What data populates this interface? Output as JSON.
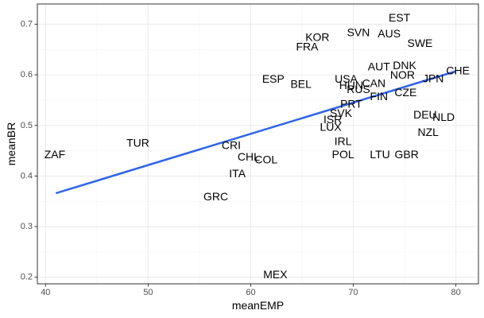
{
  "chart_data": {
    "type": "scatter",
    "title": "",
    "xlabel": "meanEMP",
    "ylabel": "meanBR",
    "xlim": [
      39.2,
      82.2
    ],
    "ylim": [
      0.187,
      0.74
    ],
    "x_ticks": [
      40,
      50,
      60,
      70,
      80
    ],
    "y_ticks": [
      0.2,
      0.3,
      0.4,
      0.5,
      0.6,
      0.7
    ],
    "x_tick_labels": [
      "40",
      "50",
      "60",
      "70",
      "80"
    ],
    "y_tick_labels": [
      "0.2",
      "0.3",
      "0.4",
      "0.5",
      "0.6",
      "0.7"
    ],
    "grid": true,
    "legend": "none",
    "colors": {
      "trend": "#3366e6",
      "panel_border": "#333333",
      "grid_major": "#ebebeb",
      "grid_minor": "#f5f5f5",
      "text": "#000000",
      "tick_text": "#4d4d4d"
    },
    "trend_line": {
      "x": [
        41.0,
        80.0
      ],
      "y": [
        0.366,
        0.607
      ]
    },
    "points": [
      {
        "label": "EST",
        "x": 74.5,
        "y": 0.713
      },
      {
        "label": "SVN",
        "x": 70.5,
        "y": 0.684
      },
      {
        "label": "AUS",
        "x": 73.5,
        "y": 0.682
      },
      {
        "label": "KOR",
        "x": 66.5,
        "y": 0.675
      },
      {
        "label": "SWE",
        "x": 76.5,
        "y": 0.663
      },
      {
        "label": "FRA",
        "x": 65.5,
        "y": 0.656
      },
      {
        "label": "AUT",
        "x": 72.5,
        "y": 0.617
      },
      {
        "label": "DNK",
        "x": 75.0,
        "y": 0.619
      },
      {
        "label": "CHE",
        "x": 80.2,
        "y": 0.609
      },
      {
        "label": "NOR",
        "x": 74.8,
        "y": 0.6
      },
      {
        "label": "JPN",
        "x": 77.8,
        "y": 0.593
      },
      {
        "label": "ESP",
        "x": 62.2,
        "y": 0.592
      },
      {
        "label": "USA",
        "x": 69.3,
        "y": 0.592
      },
      {
        "label": "BEL",
        "x": 64.9,
        "y": 0.582
      },
      {
        "label": "HUN",
        "x": 69.8,
        "y": 0.58
      },
      {
        "label": "CAN",
        "x": 72.0,
        "y": 0.584
      },
      {
        "label": "RUS",
        "x": 70.5,
        "y": 0.572
      },
      {
        "label": "CZE",
        "x": 75.1,
        "y": 0.566
      },
      {
        "label": "FIN",
        "x": 72.5,
        "y": 0.558
      },
      {
        "label": "PRT",
        "x": 69.8,
        "y": 0.543
      },
      {
        "label": "SVK",
        "x": 68.8,
        "y": 0.525
      },
      {
        "label": "DEU",
        "x": 77.0,
        "y": 0.522
      },
      {
        "label": "NLD",
        "x": 78.8,
        "y": 0.517
      },
      {
        "label": "ISR",
        "x": 68.0,
        "y": 0.512
      },
      {
        "label": "LUX",
        "x": 67.8,
        "y": 0.497
      },
      {
        "label": "NZL",
        "x": 77.3,
        "y": 0.487
      },
      {
        "label": "TUR",
        "x": 49.0,
        "y": 0.466
      },
      {
        "label": "IRL",
        "x": 69.0,
        "y": 0.469
      },
      {
        "label": "CRI",
        "x": 58.1,
        "y": 0.461
      },
      {
        "label": "ZAF",
        "x": 40.9,
        "y": 0.443
      },
      {
        "label": "POL",
        "x": 69.0,
        "y": 0.443
      },
      {
        "label": "LTU",
        "x": 72.6,
        "y": 0.443
      },
      {
        "label": "GBR",
        "x": 75.2,
        "y": 0.443
      },
      {
        "label": "CHL",
        "x": 59.8,
        "y": 0.438
      },
      {
        "label": "COL",
        "x": 61.5,
        "y": 0.433
      },
      {
        "label": "ITA",
        "x": 58.7,
        "y": 0.405
      },
      {
        "label": "GRC",
        "x": 56.6,
        "y": 0.36
      },
      {
        "label": "MEX",
        "x": 62.4,
        "y": 0.206
      }
    ]
  }
}
